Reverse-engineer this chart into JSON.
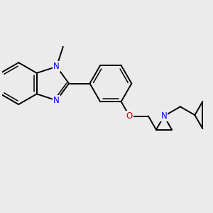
{
  "bg_color": "#ebebeb",
  "bond_color": "#000000",
  "N_color": "#0000ff",
  "O_color": "#cc0000",
  "bond_width": 1.4,
  "font_size": 8.5,
  "figsize": [
    3.0,
    3.0
  ],
  "dpi": 100,
  "xlim": [
    0,
    10
  ],
  "ylim": [
    0,
    10
  ]
}
